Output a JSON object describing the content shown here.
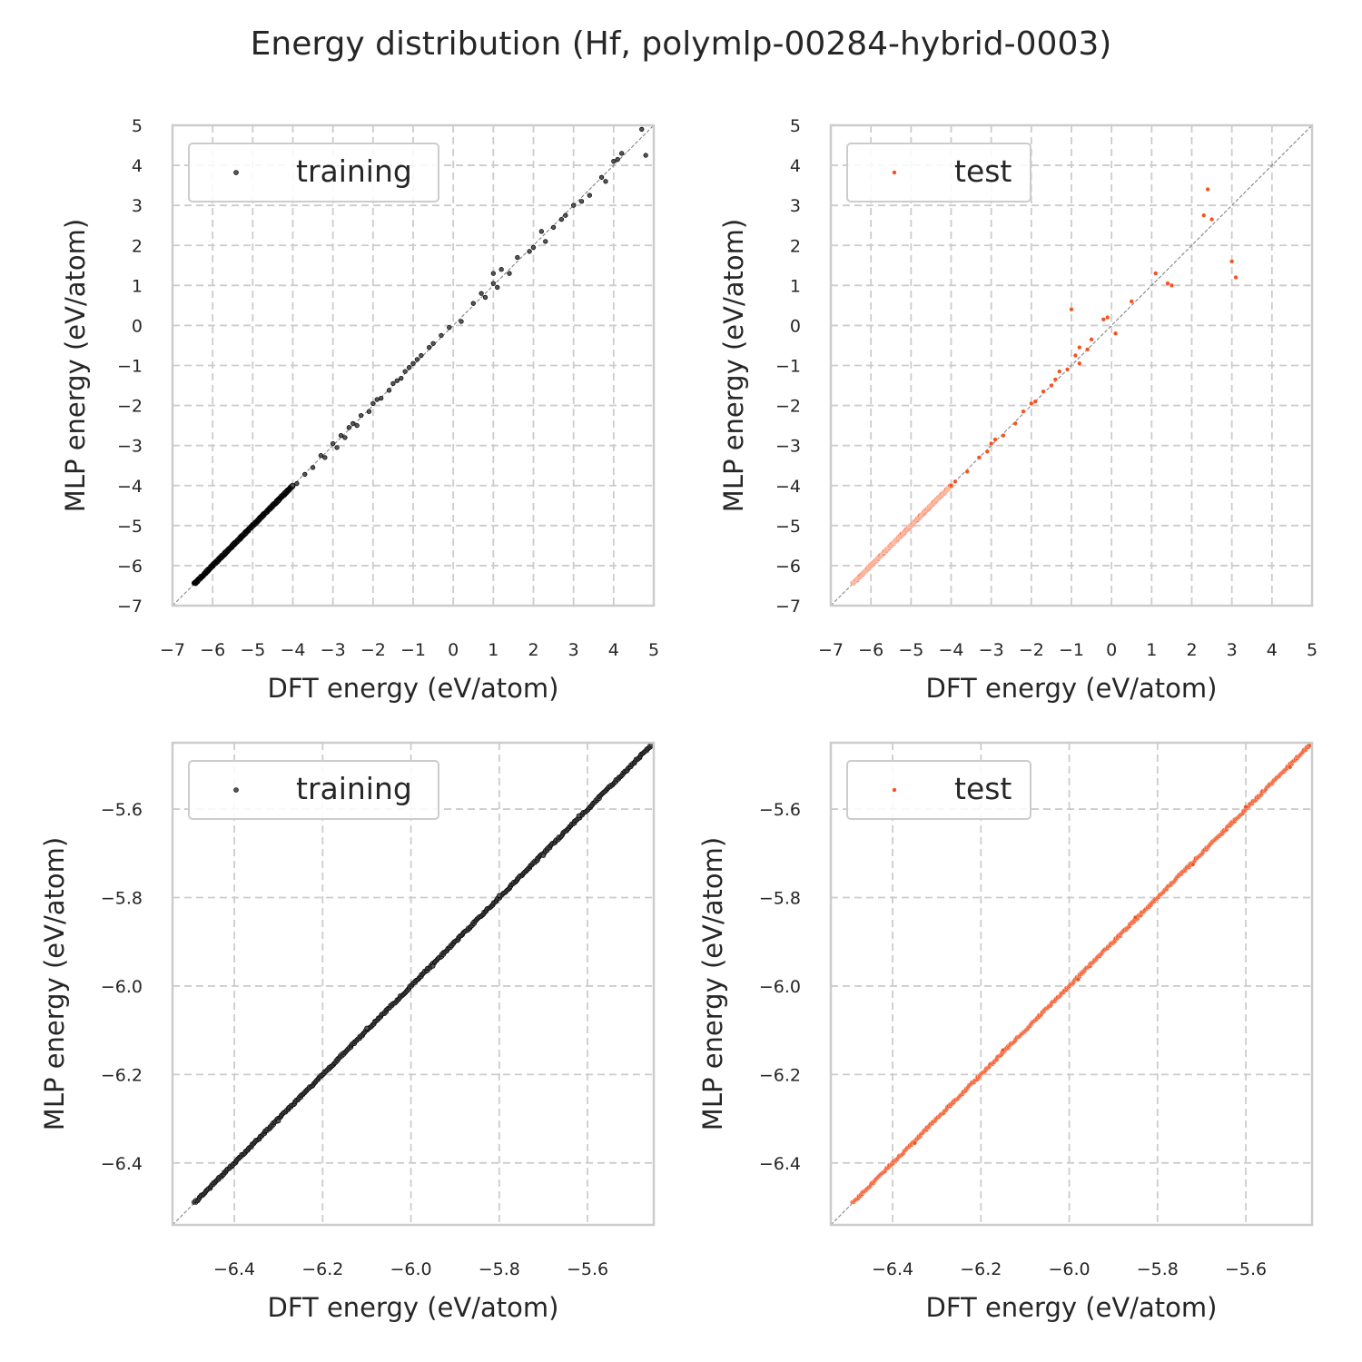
{
  "title": "Energy distribution (Hf, polymlp-00284-hybrid-0003)",
  "chart_data": [
    {
      "type": "scatter",
      "panel": "top-left",
      "legend": "training",
      "legend_position": "upper-left",
      "color": "#000000",
      "xlabel": "DFT energy (eV/atom)",
      "ylabel": "MLP energy (eV/atom)",
      "xlim": [
        -7,
        5
      ],
      "ylim": [
        -7,
        5
      ],
      "xticks": [
        -7,
        -6,
        -5,
        -4,
        -3,
        -2,
        -1,
        0,
        1,
        2,
        3,
        4,
        5
      ],
      "yticks": [
        -7,
        -6,
        -5,
        -4,
        -3,
        -2,
        -1,
        0,
        1,
        2,
        3,
        4,
        5
      ],
      "tick_decimals": 0,
      "grid": true,
      "diagonal": true,
      "dense_band": [
        -6.45,
        -4.0
      ],
      "points": [
        [
          -3.9,
          -3.95
        ],
        [
          -3.7,
          -3.72
        ],
        [
          -3.5,
          -3.55
        ],
        [
          -3.3,
          -3.25
        ],
        [
          -3.2,
          -3.3
        ],
        [
          -3.0,
          -2.95
        ],
        [
          -2.9,
          -3.05
        ],
        [
          -2.8,
          -2.75
        ],
        [
          -2.7,
          -2.8
        ],
        [
          -2.6,
          -2.55
        ],
        [
          -2.5,
          -2.45
        ],
        [
          -2.4,
          -2.5
        ],
        [
          -2.3,
          -2.25
        ],
        [
          -2.1,
          -2.15
        ],
        [
          -2.0,
          -1.95
        ],
        [
          -1.9,
          -1.85
        ],
        [
          -1.8,
          -1.82
        ],
        [
          -1.6,
          -1.62
        ],
        [
          -1.5,
          -1.45
        ],
        [
          -1.4,
          -1.38
        ],
        [
          -1.3,
          -1.32
        ],
        [
          -1.2,
          -1.15
        ],
        [
          -1.1,
          -1.05
        ],
        [
          -1.0,
          -0.95
        ],
        [
          -0.9,
          -0.85
        ],
        [
          -0.8,
          -0.75
        ],
        [
          -0.6,
          -0.55
        ],
        [
          -0.5,
          -0.45
        ],
        [
          -0.3,
          -0.25
        ],
        [
          -0.1,
          -0.05
        ],
        [
          0.2,
          0.1
        ],
        [
          0.5,
          0.55
        ],
        [
          0.7,
          0.8
        ],
        [
          0.8,
          0.7
        ],
        [
          1.0,
          1.05
        ],
        [
          1.1,
          0.95
        ],
        [
          1.0,
          1.3
        ],
        [
          1.2,
          1.4
        ],
        [
          1.4,
          1.3
        ],
        [
          1.6,
          1.7
        ],
        [
          1.9,
          1.85
        ],
        [
          2.0,
          1.95
        ],
        [
          2.2,
          2.35
        ],
        [
          2.3,
          2.1
        ],
        [
          2.5,
          2.45
        ],
        [
          2.7,
          2.65
        ],
        [
          2.8,
          2.75
        ],
        [
          3.0,
          3.0
        ],
        [
          3.2,
          3.1
        ],
        [
          3.4,
          3.25
        ],
        [
          3.7,
          3.7
        ],
        [
          3.8,
          3.6
        ],
        [
          4.0,
          4.1
        ],
        [
          4.1,
          4.15
        ],
        [
          4.2,
          4.3
        ],
        [
          4.7,
          4.9
        ],
        [
          4.8,
          4.25
        ]
      ]
    },
    {
      "type": "scatter",
      "panel": "top-right",
      "legend": "test",
      "legend_position": "upper-left",
      "color": "#f4511e",
      "xlabel": "DFT energy (eV/atom)",
      "ylabel": "MLP energy (eV/atom)",
      "xlim": [
        -7,
        5
      ],
      "ylim": [
        -7,
        5
      ],
      "xticks": [
        -7,
        -6,
        -5,
        -4,
        -3,
        -2,
        -1,
        0,
        1,
        2,
        3,
        4,
        5
      ],
      "yticks": [
        -7,
        -6,
        -5,
        -4,
        -3,
        -2,
        -1,
        0,
        1,
        2,
        3,
        4,
        5
      ],
      "tick_decimals": 0,
      "grid": true,
      "diagonal": true,
      "dense_band": [
        -6.45,
        -4.0
      ],
      "points": [
        [
          -3.9,
          -3.9
        ],
        [
          -3.6,
          -3.65
        ],
        [
          -3.3,
          -3.3
        ],
        [
          -3.1,
          -3.15
        ],
        [
          -3.0,
          -2.95
        ],
        [
          -2.9,
          -2.85
        ],
        [
          -2.7,
          -2.75
        ],
        [
          -2.4,
          -2.45
        ],
        [
          -2.2,
          -2.15
        ],
        [
          -2.0,
          -1.95
        ],
        [
          -1.9,
          -1.9
        ],
        [
          -1.7,
          -1.65
        ],
        [
          -1.5,
          -1.5
        ],
        [
          -1.4,
          -1.35
        ],
        [
          -1.3,
          -1.15
        ],
        [
          -1.1,
          -1.1
        ],
        [
          -1.0,
          0.4
        ],
        [
          -0.9,
          -0.75
        ],
        [
          -0.8,
          -0.95
        ],
        [
          -0.8,
          -0.55
        ],
        [
          -0.6,
          -0.6
        ],
        [
          -0.5,
          -0.35
        ],
        [
          -0.2,
          0.15
        ],
        [
          -0.1,
          0.2
        ],
        [
          0.1,
          -0.2
        ],
        [
          0.5,
          0.6
        ],
        [
          1.1,
          1.3
        ],
        [
          1.4,
          1.05
        ],
        [
          1.5,
          1.0
        ],
        [
          2.3,
          2.75
        ],
        [
          2.4,
          3.4
        ],
        [
          2.5,
          2.65
        ],
        [
          3.0,
          1.6
        ],
        [
          3.1,
          1.2
        ]
      ]
    },
    {
      "type": "scatter",
      "panel": "bottom-left",
      "legend": "training",
      "legend_position": "upper-left",
      "color": "#000000",
      "xlabel": "DFT energy (eV/atom)",
      "ylabel": "MLP energy (eV/atom)",
      "xlim": [
        -6.54,
        -5.45
      ],
      "ylim": [
        -6.54,
        -5.45
      ],
      "xticks": [
        -6.4,
        -6.2,
        -6.0,
        -5.8,
        -5.6
      ],
      "yticks": [
        -6.4,
        -6.2,
        -6.0,
        -5.8,
        -5.6
      ],
      "tick_decimals": 1,
      "grid": true,
      "diagonal": true,
      "dense_band": [
        -6.49,
        -5.455
      ],
      "points": [
        [
          -6.3,
          -6.305
        ],
        [
          -6.1,
          -6.095
        ],
        [
          -5.95,
          -5.955
        ],
        [
          -5.8,
          -5.795
        ],
        [
          -5.7,
          -5.705
        ],
        [
          -5.62,
          -5.615
        ]
      ]
    },
    {
      "type": "scatter",
      "panel": "bottom-right",
      "legend": "test",
      "legend_position": "upper-left",
      "color": "#f4511e",
      "xlabel": "DFT energy (eV/atom)",
      "ylabel": "MLP energy (eV/atom)",
      "xlim": [
        -6.54,
        -5.45
      ],
      "ylim": [
        -6.54,
        -5.45
      ],
      "xticks": [
        -6.4,
        -6.2,
        -6.0,
        -5.8,
        -5.6
      ],
      "yticks": [
        -6.4,
        -6.2,
        -6.0,
        -5.8,
        -5.6
      ],
      "tick_decimals": 1,
      "grid": true,
      "diagonal": true,
      "dense_band": [
        -6.49,
        -5.455
      ],
      "points": [
        [
          -6.35,
          -6.355
        ],
        [
          -6.15,
          -6.145
        ],
        [
          -5.98,
          -5.985
        ],
        [
          -5.85,
          -5.845
        ],
        [
          -5.72,
          -5.725
        ],
        [
          -5.6,
          -5.595
        ],
        [
          -5.5,
          -5.505
        ]
      ]
    }
  ]
}
